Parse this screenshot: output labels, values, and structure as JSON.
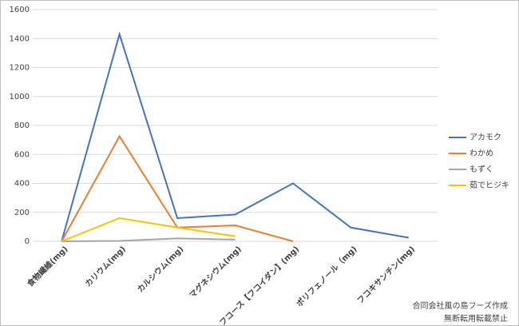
{
  "chart_data": {
    "type": "line",
    "categories": [
      "食物繊維(mg)",
      "カリウム(mg)",
      "カルシウム(mg)",
      "マグネシウム(mg)",
      "フコース【フコイダン】(mg)",
      "ポリフェノール（mg)",
      "フコキサンチン(mg)"
    ],
    "series": [
      {
        "name": "アカモク",
        "color": "#4472c4",
        "values": [
          0,
          1430,
          160,
          185,
          400,
          95,
          25
        ]
      },
      {
        "name": "わかめ",
        "color": "#ed7d31",
        "values": [
          0,
          725,
          95,
          110,
          0,
          null,
          null
        ]
      },
      {
        "name": "もずく",
        "color": "#a5a5a5",
        "values": [
          0,
          3,
          20,
          12,
          null,
          null,
          null
        ]
      },
      {
        "name": "茹でヒジキ",
        "color": "#ffc000",
        "values": [
          0,
          160,
          95,
          35,
          null,
          null,
          null
        ]
      }
    ],
    "ylim": [
      0,
      1600
    ],
    "yticks": [
      0,
      200,
      400,
      600,
      800,
      1000,
      1200,
      1400,
      1600
    ],
    "grid": true,
    "legend": "right",
    "annotations": [
      "合同会社風の島フーズ作成",
      "無断転用転載禁止"
    ]
  }
}
